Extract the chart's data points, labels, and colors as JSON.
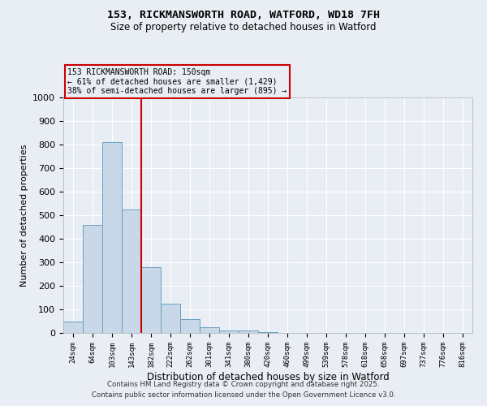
{
  "title_line1": "153, RICKMANSWORTH ROAD, WATFORD, WD18 7FH",
  "title_line2": "Size of property relative to detached houses in Watford",
  "xlabel": "Distribution of detached houses by size in Watford",
  "ylabel": "Number of detached properties",
  "categories": [
    "24sqm",
    "64sqm",
    "103sqm",
    "143sqm",
    "182sqm",
    "222sqm",
    "262sqm",
    "301sqm",
    "341sqm",
    "380sqm",
    "420sqm",
    "460sqm",
    "499sqm",
    "539sqm",
    "578sqm",
    "618sqm",
    "658sqm",
    "697sqm",
    "737sqm",
    "776sqm",
    "816sqm"
  ],
  "values": [
    50,
    460,
    810,
    525,
    280,
    125,
    60,
    25,
    10,
    10,
    5,
    0,
    0,
    0,
    0,
    0,
    0,
    0,
    0,
    0,
    0
  ],
  "bar_color": "#c8d8e8",
  "bar_edge_color": "#6a9fc0",
  "property_line_x": 3.5,
  "property_line_color": "#cc0000",
  "annotation_text": "153 RICKMANSWORTH ROAD: 150sqm\n← 61% of detached houses are smaller (1,429)\n38% of semi-detached houses are larger (895) →",
  "annotation_box_color": "#cc0000",
  "annotation_text_color": "#000000",
  "ylim": [
    0,
    1000
  ],
  "yticks": [
    0,
    100,
    200,
    300,
    400,
    500,
    600,
    700,
    800,
    900,
    1000
  ],
  "background_color": "#e8eef4",
  "grid_color": "#ffffff",
  "footer_line1": "Contains HM Land Registry data © Crown copyright and database right 2025.",
  "footer_line2": "Contains public sector information licensed under the Open Government Licence v3.0."
}
